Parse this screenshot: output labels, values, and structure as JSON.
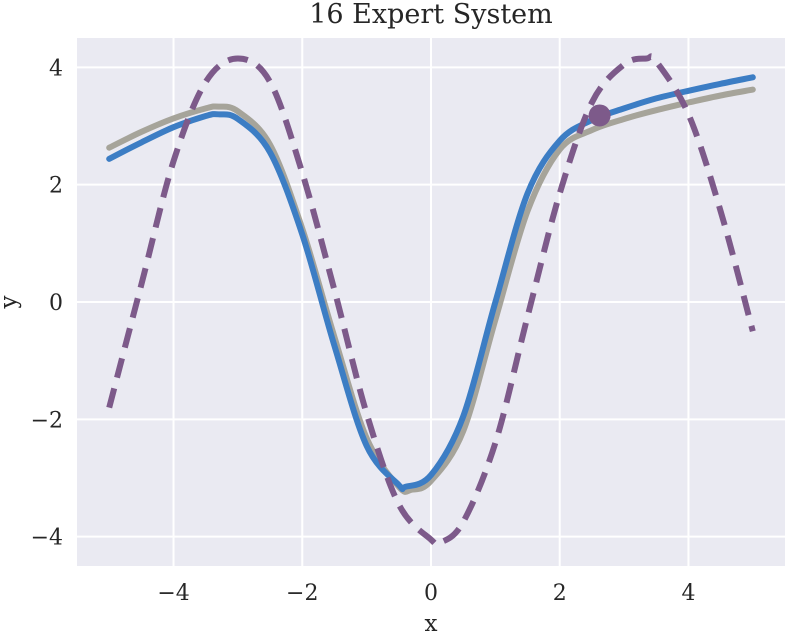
{
  "chart_data": {
    "type": "line",
    "title": "16 Expert System",
    "xlabel": "x",
    "ylabel": "y",
    "xlim": [
      -5.5,
      5.5
    ],
    "ylim": [
      -4.5,
      4.5
    ],
    "xticks": [
      -4,
      -2,
      0,
      2,
      4
    ],
    "yticks": [
      -4,
      -2,
      0,
      2,
      4
    ],
    "xtick_labels": [
      "−4",
      "−2",
      "0",
      "2",
      "4"
    ],
    "ytick_labels": [
      "−4",
      "−2",
      "0",
      "2",
      "4"
    ],
    "grid": true,
    "background": "#eaeaf2",
    "series": [
      {
        "style": "solid",
        "color": "#a6a49a",
        "x": [
          -5.0,
          -4.5,
          -4.0,
          -3.5,
          -3.3,
          -3.0,
          -2.5,
          -2.0,
          -1.5,
          -1.0,
          -0.5,
          -0.3,
          0.0,
          0.5,
          1.0,
          1.5,
          2.0,
          2.5,
          3.0,
          3.5,
          4.0,
          4.5,
          5.0
        ],
        "y": [
          2.63,
          2.9,
          3.13,
          3.3,
          3.33,
          3.25,
          2.68,
          1.25,
          -0.6,
          -2.32,
          -3.15,
          -3.2,
          -3.05,
          -2.2,
          -0.3,
          1.55,
          2.6,
          2.93,
          3.12,
          3.27,
          3.4,
          3.52,
          3.62
        ]
      },
      {
        "style": "solid",
        "color": "#3c7dc4",
        "x": [
          -5.0,
          -4.5,
          -4.0,
          -3.5,
          -3.3,
          -3.0,
          -2.5,
          -2.0,
          -1.5,
          -1.0,
          -0.5,
          -0.4,
          0.0,
          0.5,
          1.0,
          1.5,
          2.0,
          2.5,
          3.0,
          3.5,
          4.0,
          4.5,
          5.0
        ],
        "y": [
          2.44,
          2.72,
          2.98,
          3.17,
          3.2,
          3.12,
          2.55,
          1.15,
          -0.75,
          -2.45,
          -3.12,
          -3.15,
          -2.95,
          -1.95,
          0.0,
          1.85,
          2.75,
          3.1,
          3.3,
          3.47,
          3.6,
          3.72,
          3.83
        ]
      },
      {
        "style": "dashed",
        "color": "#7d5a8a",
        "x": [
          -5.0,
          -4.5,
          -4.0,
          -3.5,
          -3.0,
          -2.5,
          -2.0,
          -1.5,
          -1.0,
          -0.5,
          0.0,
          0.15,
          0.5,
          1.0,
          1.5,
          2.0,
          2.5,
          3.0,
          3.35,
          3.5,
          4.0,
          4.5,
          5.0
        ],
        "y": [
          -1.8,
          0.3,
          2.4,
          3.75,
          4.15,
          3.75,
          2.2,
          0.2,
          -1.9,
          -3.45,
          -4.05,
          -4.1,
          -3.75,
          -2.4,
          -0.25,
          1.85,
          3.4,
          4.05,
          4.15,
          4.1,
          3.2,
          1.55,
          -0.5
        ]
      }
    ],
    "marker": {
      "x": 2.62,
      "y": 3.18,
      "color": "#7d5a8a"
    }
  }
}
